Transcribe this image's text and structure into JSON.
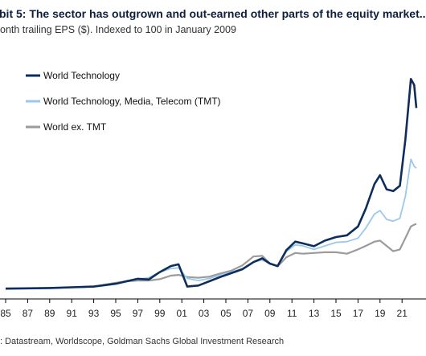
{
  "header": {
    "title": "bit 5: The sector has outgrown and out-earned other parts of the equity market...",
    "subtitle": "onth trailing EPS ($). Indexed to 100 in January 2009"
  },
  "footer": {
    "source": ": Datastream, Worldscope, Goldman Sachs Global Investment Research"
  },
  "colors": {
    "world_technology": "#0e2d5c",
    "tmt": "#9cc8ea",
    "world_ex_tmt": "#9b9b9b"
  },
  "chart_data": {
    "type": "line",
    "x_ticks": [
      "85",
      "87",
      "89",
      "91",
      "93",
      "95",
      "97",
      "99",
      "01",
      "03",
      "05",
      "07",
      "09",
      "11",
      "13",
      "15",
      "17",
      "19",
      "21"
    ],
    "legend": [
      "World Technology",
      "World Technology, Media, Telecom (TMT)",
      "World ex. TMT"
    ],
    "legend_position": "top-left",
    "grid": false,
    "series": [
      {
        "name": "World Technology",
        "x": [
          1985,
          1987,
          1989,
          1991,
          1993,
          1995,
          1996,
          1997,
          1998,
          1999,
          2000,
          2000.7,
          2001.5,
          2002.5,
          2003.5,
          2004.5,
          2005.5,
          2006.5,
          2007.5,
          2008.3,
          2009,
          2009.7,
          2010.5,
          2011.3,
          2012,
          2013,
          2014,
          2015,
          2016,
          2017,
          2017.7,
          2018.5,
          2019,
          2019.6,
          2020.2,
          2020.8,
          2021.3,
          2021.8,
          2022.1,
          2022.3
        ],
        "values": [
          29,
          30,
          31,
          33,
          35,
          43,
          50,
          57,
          55,
          76,
          93,
          98,
          35,
          38,
          50,
          62,
          73,
          84,
          104,
          115,
          100,
          93,
          138,
          162,
          157,
          149,
          165,
          175,
          180,
          205,
          255,
          325,
          350,
          310,
          305,
          320,
          450,
          622,
          605,
          540
        ]
      },
      {
        "name": "World Technology, Media, Telecom (TMT)",
        "x": [
          1985,
          1987,
          1989,
          1991,
          1993,
          1995,
          1996,
          1997,
          1998,
          1999,
          2000,
          2000.7,
          2001.5,
          2002.5,
          2003.5,
          2004.5,
          2005.5,
          2006.5,
          2007.5,
          2008.3,
          2009,
          2009.7,
          2010.5,
          2011.3,
          2012,
          2013,
          2014,
          2015,
          2016,
          2017,
          2017.7,
          2018.5,
          2019,
          2019.6,
          2020.2,
          2020.8,
          2021.3,
          2021.8,
          2022.1,
          2022.3
        ],
        "values": [
          29,
          30,
          31,
          33,
          34,
          44,
          52,
          56,
          60,
          76,
          86,
          88,
          58,
          52,
          58,
          67,
          76,
          86,
          104,
          110,
          100,
          92,
          134,
          153,
          150,
          140,
          150,
          160,
          162,
          172,
          200,
          240,
          250,
          225,
          220,
          228,
          290,
          395,
          375,
          370
        ]
      },
      {
        "name": "World ex. TMT",
        "x": [
          1985,
          1987,
          1989,
          1991,
          1993,
          1995,
          1996,
          1997,
          1998,
          1999,
          2000,
          2000.7,
          2001.5,
          2002.5,
          2003.5,
          2004.5,
          2005.5,
          2006.5,
          2007.5,
          2008.3,
          2009,
          2009.7,
          2010.5,
          2011.3,
          2012,
          2013,
          2014,
          2015,
          2016,
          2017,
          2017.7,
          2018.5,
          2019,
          2019.6,
          2020.2,
          2020.8,
          2021.3,
          2021.8,
          2022.1,
          2022.3
        ],
        "values": [
          30,
          30,
          31,
          33,
          35,
          46,
          50,
          52,
          52,
          56,
          66,
          68,
          62,
          60,
          63,
          72,
          80,
          95,
          120,
          122,
          100,
          92,
          118,
          130,
          128,
          130,
          132,
          132,
          128,
          140,
          150,
          162,
          165,
          150,
          135,
          140,
          172,
          205,
          210,
          212
        ]
      }
    ]
  }
}
